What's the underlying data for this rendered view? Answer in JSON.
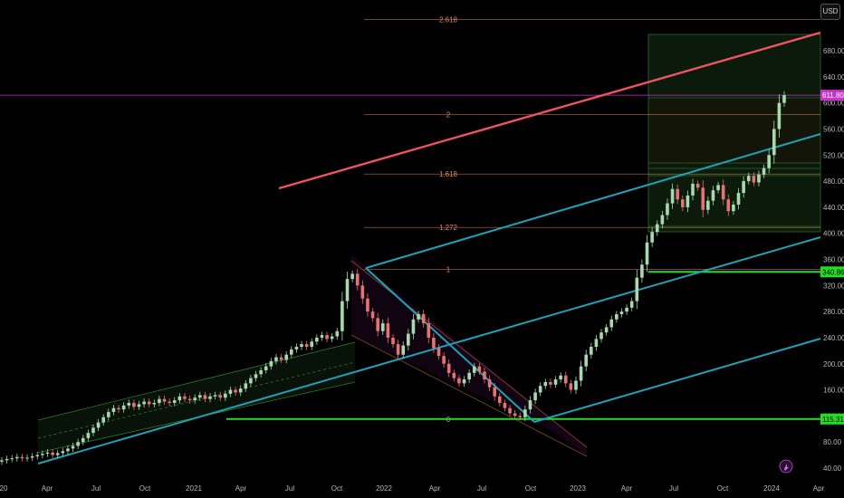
{
  "currency_button": "USD",
  "chart_data": {
    "type": "candlestick",
    "x_axis": {
      "tick_labels": [
        "20",
        "Apr",
        "Jul",
        "Oct",
        "2021",
        "Apr",
        "Jul",
        "Oct",
        "2022",
        "Apr",
        "Jul",
        "Oct",
        "2023",
        "Apr",
        "Jul",
        "Oct",
        "2024",
        "Apr"
      ]
    },
    "y_axis": {
      "tick_labels": [
        "40.00",
        "80.00",
        "120.00",
        "160.00",
        "200.00",
        "240.00",
        "280.00",
        "320.00",
        "360.00",
        "400.00",
        "440.00",
        "480.00",
        "520.00",
        "560.00",
        "600.00",
        "640.00",
        "680.00"
      ],
      "ylim": [
        30,
        710
      ]
    },
    "price_labels": [
      {
        "text": "611.80",
        "value": 611.8,
        "color": "#cc33cc"
      },
      {
        "text": "340.86",
        "value": 340.86,
        "color": "#22dd22"
      },
      {
        "text": "115.31",
        "value": 115.31,
        "color": "#22dd22"
      }
    ],
    "fib_levels": [
      {
        "label": "0",
        "value": 115
      },
      {
        "label": "1",
        "value": 345
      },
      {
        "label": "1.272",
        "value": 409
      },
      {
        "label": "1.618",
        "value": 491
      },
      {
        "label": "2",
        "value": 582
      },
      {
        "label": "2.618",
        "value": 728
      }
    ],
    "candles_close": [
      52,
      54,
      55,
      57,
      55,
      56,
      58,
      60,
      62,
      64,
      60,
      63,
      66,
      70,
      74,
      80,
      86,
      94,
      102,
      110,
      118,
      126,
      132,
      130,
      136,
      140,
      134,
      138,
      142,
      138,
      140,
      146,
      142,
      140,
      144,
      150,
      146,
      144,
      148,
      152,
      146,
      150,
      152,
      148,
      154,
      160,
      156,
      162,
      170,
      178,
      184,
      190,
      196,
      204,
      210,
      206,
      214,
      222,
      226,
      230,
      226,
      234,
      240,
      244,
      238,
      242,
      250,
      296,
      330,
      338,
      320,
      300,
      280,
      270,
      250,
      262,
      240,
      230,
      214,
      228,
      246,
      268,
      276,
      262,
      240,
      224,
      212,
      200,
      186,
      178,
      170,
      176,
      186,
      196,
      188,
      176,
      164,
      150,
      140,
      132,
      124,
      120,
      118,
      130,
      144,
      156,
      166,
      172,
      168,
      176,
      182,
      170,
      160,
      174,
      196,
      214,
      226,
      238,
      248,
      256,
      268,
      276,
      280,
      286,
      296,
      332,
      352,
      386,
      402,
      414,
      428,
      446,
      468,
      452,
      440,
      458,
      476,
      470,
      436,
      450,
      466,
      474,
      452,
      434,
      444,
      462,
      480,
      488,
      478,
      490,
      500,
      520,
      560,
      600,
      612
    ]
  },
  "colors": {
    "background": "#000000",
    "up": "#a8d8b0",
    "down": "#e57373",
    "red_trend": "#ef5360",
    "pitchfork": "#1fa2b6",
    "fib": "#e0875a",
    "green_level": "#22dd22",
    "magenta_level": "#cc33cc"
  }
}
